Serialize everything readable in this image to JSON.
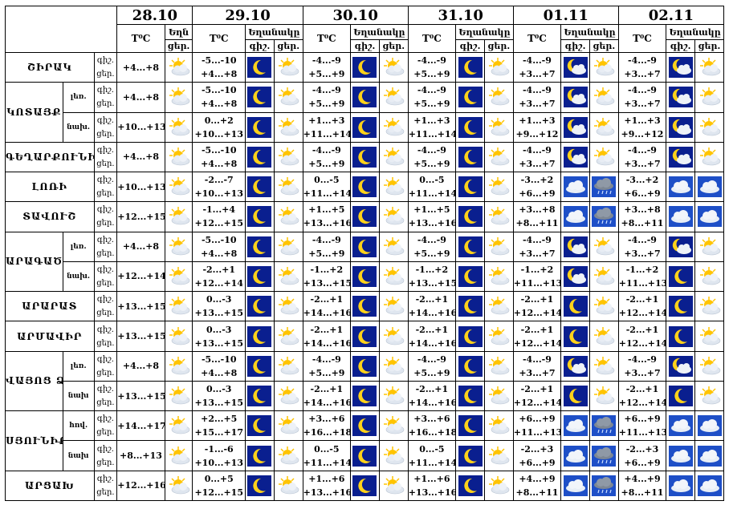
{
  "dates": [
    "28.10",
    "29.10",
    "30.10",
    "31.10",
    "01.11",
    "02.11"
  ],
  "header": {
    "temp_label": "T⁰C",
    "weather_label": "Եղանակը",
    "weather_label_short": "Եղն",
    "night_label": "գիշ.",
    "day_label": "ցեր."
  },
  "row_labels": {
    "night": "գիշ.",
    "day": "ցեր."
  },
  "rows": [
    {
      "region": "ՇԻՐԱԿ",
      "sub": "",
      "rowspan": 1,
      "sub_rowspan": 0,
      "d0": {
        "day": "+4...+8",
        "icon": "sun-cloud"
      },
      "days": [
        {
          "night": "-5...-10",
          "day": "+4...+8",
          "n": "moon",
          "d": "sun-cloud"
        },
        {
          "night": "-4...-9",
          "day": "+5...+9",
          "n": "moon",
          "d": "sun-cloud"
        },
        {
          "night": "-4...-9",
          "day": "+5...+9",
          "n": "moon",
          "d": "sun-cloud"
        },
        {
          "night": "-4...-9",
          "day": "+3...+7",
          "n": "moon-cloud",
          "d": "sun-cloud"
        },
        {
          "night": "-4...-9",
          "day": "+3...+7",
          "n": "moon-cloud",
          "d": "sun-cloud"
        }
      ]
    },
    {
      "region": "ԿՈՏԱՅՔ",
      "sub": "լեռ.",
      "rowspan": 2,
      "sub_rowspan": 1,
      "d0": {
        "day": "+4...+8",
        "icon": "sun-cloud"
      },
      "days": [
        {
          "night": "-5...-10",
          "day": "+4...+8",
          "n": "moon",
          "d": "sun-cloud"
        },
        {
          "night": "-4...-9",
          "day": "+5...+9",
          "n": "moon",
          "d": "sun-cloud"
        },
        {
          "night": "-4...-9",
          "day": "+5...+9",
          "n": "moon",
          "d": "sun-cloud"
        },
        {
          "night": "-4...-9",
          "day": "+3...+7",
          "n": "moon-cloud",
          "d": "sun-cloud"
        },
        {
          "night": "-4...-9",
          "day": "+3...+7",
          "n": "moon-cloud",
          "d": "sun-cloud"
        }
      ]
    },
    {
      "region": "",
      "sub": "նախ.",
      "rowspan": 0,
      "sub_rowspan": 1,
      "d0": {
        "day": "+10...+13",
        "icon": "sun-cloud"
      },
      "days": [
        {
          "night": "0...+2",
          "day": "+10...+13",
          "n": "moon",
          "d": "sun-cloud"
        },
        {
          "night": "+1...+3",
          "day": "+11...+14",
          "n": "moon",
          "d": "sun-cloud"
        },
        {
          "night": "+1...+3",
          "day": "+11...+14",
          "n": "moon",
          "d": "sun-cloud"
        },
        {
          "night": "+1...+3",
          "day": "+9...+12",
          "n": "moon-cloud",
          "d": "sun-cloud"
        },
        {
          "night": "+1...+3",
          "day": "+9...+12",
          "n": "moon-cloud",
          "d": "sun-cloud"
        }
      ]
    },
    {
      "region": "ԳԵՂԱՐՔՈՒՆԻՔ",
      "sub": "",
      "rowspan": 1,
      "sub_rowspan": 0,
      "d0": {
        "day": "+4...+8",
        "icon": "sun-cloud"
      },
      "days": [
        {
          "night": "-5...-10",
          "day": "+4...+8",
          "n": "moon",
          "d": "sun-cloud"
        },
        {
          "night": "-4...-9",
          "day": "+5...+9",
          "n": "moon",
          "d": "sun-cloud"
        },
        {
          "night": "-4...-9",
          "day": "+5...+9",
          "n": "moon",
          "d": "sun-cloud"
        },
        {
          "night": "-4...-9",
          "day": "+3...+7",
          "n": "moon-cloud",
          "d": "sun-cloud"
        },
        {
          "night": "-4...-9",
          "day": "+3...+7",
          "n": "moon-cloud",
          "d": "sun-cloud"
        }
      ]
    },
    {
      "region": "ԼՈՌԻ",
      "sub": "",
      "rowspan": 1,
      "sub_rowspan": 0,
      "d0": {
        "day": "+10...+13",
        "icon": "sun-cloud"
      },
      "days": [
        {
          "night": "-2...-7",
          "day": "+10...+13",
          "n": "moon",
          "d": "sun-cloud"
        },
        {
          "night": "0...-5",
          "day": "+11...+14",
          "n": "moon",
          "d": "sun-cloud"
        },
        {
          "night": "0...-5",
          "day": "+11...+14",
          "n": "moon",
          "d": "sun-cloud"
        },
        {
          "night": "-3...+2",
          "day": "+6...+9",
          "n": "cloud",
          "d": "rain"
        },
        {
          "night": "-3...+2",
          "day": "+6...+9",
          "n": "cloud",
          "d": "cloud"
        }
      ]
    },
    {
      "region": "ՏԱՎՈՒՇ",
      "sub": "",
      "rowspan": 1,
      "sub_rowspan": 0,
      "d0": {
        "day": "+12...+15",
        "icon": "sun-cloud"
      },
      "days": [
        {
          "night": "-1...+4",
          "day": "+12...+15",
          "n": "moon",
          "d": "sun-cloud"
        },
        {
          "night": "+1...+5",
          "day": "+13...+16",
          "n": "moon",
          "d": "sun-cloud"
        },
        {
          "night": "+1...+5",
          "day": "+13...+16",
          "n": "moon",
          "d": "sun-cloud"
        },
        {
          "night": "+3...+8",
          "day": "+8...+11",
          "n": "cloud",
          "d": "rain"
        },
        {
          "night": "+3...+8",
          "day": "+8...+11",
          "n": "cloud",
          "d": "cloud"
        }
      ]
    },
    {
      "region": "ԱՐԱԳԱԾՈՏՆ",
      "sub": "լեռ.",
      "rowspan": 2,
      "sub_rowspan": 1,
      "d0": {
        "day": "+4...+8",
        "icon": "sun-cloud"
      },
      "days": [
        {
          "night": "-5...-10",
          "day": "+4...+8",
          "n": "moon",
          "d": "sun-cloud"
        },
        {
          "night": "-4...-9",
          "day": "+5...+9",
          "n": "moon",
          "d": "sun-cloud"
        },
        {
          "night": "-4...-9",
          "day": "+5...+9",
          "n": "moon",
          "d": "sun-cloud"
        },
        {
          "night": "-4...-9",
          "day": "+3...+7",
          "n": "moon-cloud",
          "d": "sun-cloud"
        },
        {
          "night": "-4...-9",
          "day": "+3...+7",
          "n": "moon-cloud",
          "d": "sun-cloud"
        }
      ]
    },
    {
      "region": "",
      "sub": "նախ.",
      "rowspan": 0,
      "sub_rowspan": 1,
      "d0": {
        "day": "+12...+14",
        "icon": "sun-cloud"
      },
      "days": [
        {
          "night": "-2...+1",
          "day": "+12...+14",
          "n": "moon",
          "d": "sun-cloud"
        },
        {
          "night": "-1...+2",
          "day": "+13...+15",
          "n": "moon",
          "d": "sun-cloud"
        },
        {
          "night": "-1...+2",
          "day": "+13...+15",
          "n": "moon",
          "d": "sun-cloud"
        },
        {
          "night": "-1...+2",
          "day": "+11...+13",
          "n": "moon-cloud",
          "d": "sun-cloud"
        },
        {
          "night": "-1...+2",
          "day": "+11...+13",
          "n": "moon",
          "d": "sun-cloud"
        }
      ]
    },
    {
      "region": "ԱՐԱՐԱՏ",
      "sub": "",
      "rowspan": 1,
      "sub_rowspan": 0,
      "d0": {
        "day": "+13...+15",
        "icon": "sun-cloud"
      },
      "days": [
        {
          "night": "0...-3",
          "day": "+13...+15",
          "n": "moon",
          "d": "sun-cloud"
        },
        {
          "night": "-2...+1",
          "day": "+14...+16",
          "n": "moon",
          "d": "sun-cloud"
        },
        {
          "night": "-2...+1",
          "day": "+14...+16",
          "n": "moon",
          "d": "sun-cloud"
        },
        {
          "night": "-2...+1",
          "day": "+12...+14",
          "n": "moon",
          "d": "sun-cloud"
        },
        {
          "night": "-2...+1",
          "day": "+12...+14",
          "n": "moon",
          "d": "sun-cloud"
        }
      ]
    },
    {
      "region": "ԱՐՄԱՎԻՐ",
      "sub": "",
      "rowspan": 1,
      "sub_rowspan": 0,
      "d0": {
        "day": "+13...+15",
        "icon": "sun-cloud"
      },
      "days": [
        {
          "night": "0...-3",
          "day": "+13...+15",
          "n": "moon",
          "d": "sun-cloud"
        },
        {
          "night": "-2...+1",
          "day": "+14...+16",
          "n": "moon",
          "d": "sun-cloud"
        },
        {
          "night": "-2...+1",
          "day": "+14...+16",
          "n": "moon",
          "d": "sun-cloud"
        },
        {
          "night": "-2...+1",
          "day": "+12...+14",
          "n": "moon",
          "d": "sun-cloud"
        },
        {
          "night": "-2...+1",
          "day": "+12...+14",
          "n": "moon",
          "d": "sun-cloud"
        }
      ]
    },
    {
      "region": "ՎԱՅՈՑ ՁՈՐ",
      "sub": "լեռ.",
      "rowspan": 2,
      "sub_rowspan": 1,
      "d0": {
        "day": "+4...+8",
        "icon": "sun-cloud"
      },
      "days": [
        {
          "night": "-5...-10",
          "day": "+4...+8",
          "n": "moon",
          "d": "sun-cloud"
        },
        {
          "night": "-4...-9",
          "day": "+5...+9",
          "n": "moon",
          "d": "sun-cloud"
        },
        {
          "night": "-4...-9",
          "day": "+5...+9",
          "n": "moon",
          "d": "sun-cloud"
        },
        {
          "night": "-4...-9",
          "day": "+3...+7",
          "n": "moon-cloud",
          "d": "sun-cloud"
        },
        {
          "night": "-4...-9",
          "day": "+3...+7",
          "n": "moon-cloud",
          "d": "sun-cloud"
        }
      ]
    },
    {
      "region": "",
      "sub": "նախ",
      "rowspan": 0,
      "sub_rowspan": 1,
      "d0": {
        "day": "+13...+15",
        "icon": "sun-cloud"
      },
      "days": [
        {
          "night": "0...-3",
          "day": "+13...+15",
          "n": "moon",
          "d": "sun-cloud"
        },
        {
          "night": "-2...+1",
          "day": "+14...+16",
          "n": "moon",
          "d": "sun-cloud"
        },
        {
          "night": "-2...+1",
          "day": "+14...+16",
          "n": "moon",
          "d": "sun-cloud"
        },
        {
          "night": "-2...+1",
          "day": "+12...+14",
          "n": "moon",
          "d": "sun-cloud"
        },
        {
          "night": "-2...+1",
          "day": "+12...+14",
          "n": "moon",
          "d": "sun-cloud"
        }
      ]
    },
    {
      "region": "ՍՅՈՒՆԻՔ",
      "sub": "հով.",
      "rowspan": 2,
      "sub_rowspan": 1,
      "d0": {
        "day": "+14...+17",
        "icon": "sun-cloud"
      },
      "days": [
        {
          "night": "+2...+5",
          "day": "+15...+17",
          "n": "moon",
          "d": "sun-cloud"
        },
        {
          "night": "+3...+6",
          "day": "+16...+18",
          "n": "moon",
          "d": "sun-cloud"
        },
        {
          "night": "+3...+6",
          "day": "+16...+18",
          "n": "moon",
          "d": "sun-cloud"
        },
        {
          "night": "+6...+9",
          "day": "+11...+13",
          "n": "cloud",
          "d": "rain"
        },
        {
          "night": "+6...+9",
          "day": "+11...+13",
          "n": "cloud",
          "d": "cloud"
        }
      ]
    },
    {
      "region": "",
      "sub": "նախ",
      "rowspan": 0,
      "sub_rowspan": 1,
      "d0": {
        "day": "+8...+13",
        "icon": "sun-cloud"
      },
      "days": [
        {
          "night": "-1...-6",
          "day": "+10...+13",
          "n": "moon",
          "d": "sun-cloud"
        },
        {
          "night": "0...-5",
          "day": "+11...+14",
          "n": "moon",
          "d": "sun-cloud"
        },
        {
          "night": "0...-5",
          "day": "+11...+14",
          "n": "moon",
          "d": "sun-cloud"
        },
        {
          "night": "-2...+3",
          "day": "+6...+9",
          "n": "cloud",
          "d": "rain"
        },
        {
          "night": "-2...+3",
          "day": "+6...+9",
          "n": "cloud",
          "d": "cloud"
        }
      ]
    },
    {
      "region": "ԱՐՑԱԽ",
      "sub": "",
      "rowspan": 1,
      "sub_rowspan": 0,
      "d0": {
        "day": "+12...+16",
        "icon": "sun-cloud"
      },
      "days": [
        {
          "night": "0...+5",
          "day": "+12...+15",
          "n": "moon",
          "d": "sun-cloud"
        },
        {
          "night": "+1...+6",
          "day": "+13...+16",
          "n": "moon",
          "d": "sun-cloud"
        },
        {
          "night": "+1...+6",
          "day": "+13...+16",
          "n": "moon",
          "d": "sun-cloud"
        },
        {
          "night": "+4...+9",
          "day": "+8...+11",
          "n": "cloud",
          "d": "rain"
        },
        {
          "night": "+4...+9",
          "day": "+8...+11",
          "n": "cloud",
          "d": "cloud"
        }
      ]
    }
  ],
  "colors": {
    "night_bg": "#0a1f8f",
    "moon": "#ffd21a",
    "sun": "#ffc400",
    "cloud": "#e8eef6"
  }
}
